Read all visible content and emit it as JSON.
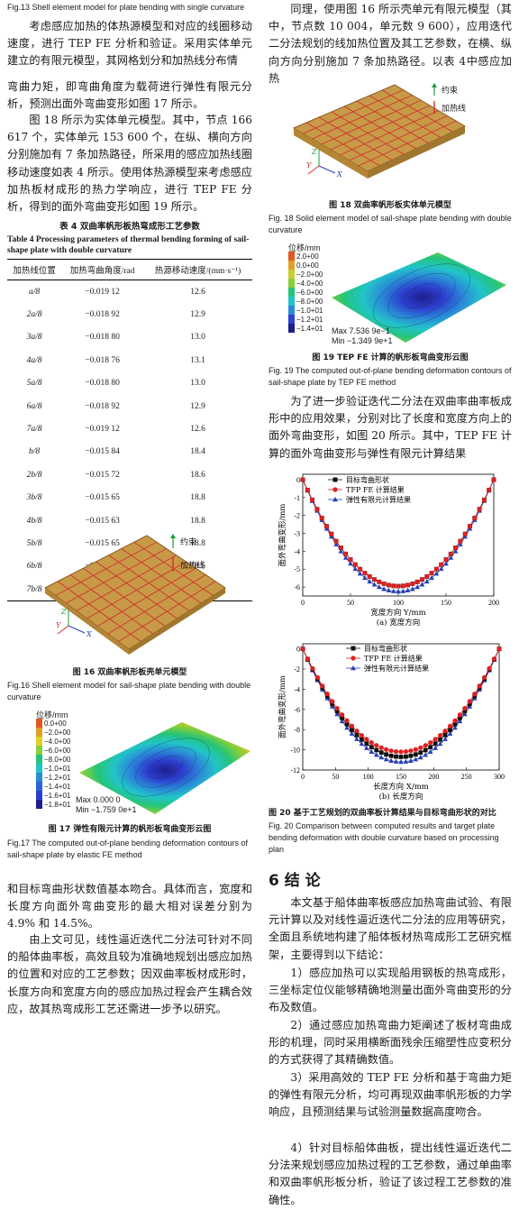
{
  "left": {
    "fig13_caption": "Fig.13    Shell element model for plate bending with single curvature",
    "para1": "考虑感应加热的体热源模型和对应的线圈移动速度，进行 TEP FE 分析和验证。采用实体单元建立的有限元模型，其网格划分和加热线分布情",
    "para2": "弯曲力矩，即弯曲角度为载荷进行弹性有限元分析，预测出面外弯曲变形如图 17 所示。",
    "para3": "图 18 所示为实体单元模型。其中，节点 166 617 个，实体单元 153 600 个，在纵、横向方向分别施加有 7 条加热路径，所采用的感应加热线圈移动速度如表 4 所示。使用体热源模型来考虑感应加热板材成形的热力学响应，进行 TEP FE 分析，得到的面外弯曲变形如图 19 所示。",
    "table4_title_cn": "表 4    双曲率帆形板热弯成形工艺参数",
    "table4_title_en": "Table 4    Processing parameters of thermal bending forming of sail-shape plate with double curvature",
    "table4_headers": [
      "加热线位置",
      "加热弯曲角度/rad",
      "热源移动速度/(mm·s⁻¹)"
    ],
    "table4_rows": [
      [
        "a/8",
        "−0.019 12",
        "12.6"
      ],
      [
        "2a/8",
        "−0.018 92",
        "12.9"
      ],
      [
        "3a/8",
        "−0.018 80",
        "13.0"
      ],
      [
        "4a/8",
        "−0.018 76",
        "13.1"
      ],
      [
        "5a/8",
        "−0.018 80",
        "13.0"
      ],
      [
        "6a/8",
        "−0.018 92",
        "12.9"
      ],
      [
        "7a/8",
        "−0.019 12",
        "12.6"
      ],
      [
        "b/8",
        "−0.015 84",
        "18.4"
      ],
      [
        "2b/8",
        "−0.015 72",
        "18.6"
      ],
      [
        "3b/8",
        "−0.015 65",
        "18.8"
      ],
      [
        "4b/8",
        "−0.015 63",
        "18.8"
      ],
      [
        "5b/8",
        "−0.015 65",
        "18.8"
      ],
      [
        "6b/8",
        "−0.015 72",
        "18.6"
      ],
      [
        "7b/8",
        "−0.015 84",
        "18.4"
      ]
    ],
    "fig16_legend": [
      "约束",
      "加热线"
    ],
    "fig16_caption_cn": "图 16    双曲率帆形板壳单元模型",
    "fig16_caption_en": "Fig.16    Shell element model for sail-shape plate bending with double curvature",
    "fig17_unit": "位移/mm",
    "fig17_scale": [
      "0.0+00",
      "−2.0+00",
      "−4.0+00",
      "−6.0+00",
      "−8.0+00",
      "−1.0+01",
      "−1.2+01",
      "−1.4+01",
      "−1.6+01",
      "−1.8+01"
    ],
    "fig17_max": "Max 0.000 0",
    "fig17_min": "Min −1.759 0e+1",
    "fig17_caption_cn": "图 17    弹性有限元计算的帆形板弯曲变形云图",
    "fig17_caption_en": "Fig.17    The computed out-of-plane bending deformation contours of sail-shape plate by elastic FE method",
    "para4": "和目标弯曲形状数值基本吻合。具体而言，宽度和长度方向面外弯曲变形的最大相对误差分别为 4.9% 和 14.5%。",
    "para5": "由上文可见，线性逼近迭代二分法可针对不同的船体曲率板，高效且较为准确地规划出感应加热的位置和对应的工艺参数；因双曲率板材成形时，长度方向和宽度方向的感应加热过程会产生耦合效应，故其热弯成形工艺还需进一步予以研究。"
  },
  "right": {
    "para1": "同理，使用图 16 所示壳单元有限元模型（其中，节点数 10 004，单元数 9 600），应用迭代二分法规划的线加热位置及其工艺参数，在横、纵向方向分别施加 7 条加热路径。以表 4中感应加热",
    "fig18_legend": [
      "约束",
      "加热线"
    ],
    "fig18_caption_cn": "图 18    双曲率帆形板实体单元模型",
    "fig18_caption_en": "Fig. 18    Solid element model of sail-shape plate bending with double curvature",
    "fig19_unit": "位移/mm",
    "fig19_scale": [
      "2.0+00",
      "0.0+00",
      "−2.0+00",
      "−4.0+00",
      "−6.0+00",
      "−8.0+00",
      "−1.0+01",
      "−1.2+01",
      "−1.4+01"
    ],
    "fig19_max": "Max 7.536 9e−1",
    "fig19_min": "Min −1.349 9e+1",
    "fig19_caption_cn": "图 19    TEP FE 计算的帆形板弯曲变形云图",
    "fig19_caption_en": "Fig. 19    The computed out-of-plane bending deformation contours of sail-shape plate by TEP FE method",
    "para2": "为了进一步验证迭代二分法在双曲率曲率板成形中的应用效果，分别对比了长度和宽度方向上的面外弯曲变形，如图 20 所示。其中，TEP FE 计算的面外弯曲变形与弹性有限元计算结果",
    "fig20_caption_cn": "图 20    基于工艺规划的双曲率板计算结果与目标弯曲形状的对比",
    "fig20_caption_en": "Fig. 20    Comparison between computed results and target plate bending deformation with double curvature based on processing plan",
    "section_title": "6    结    论",
    "concl_intro": "本文基于船体曲率板感应加热弯曲试验、有限元计算以及对线性逼近迭代二分法的应用等研究，全面且系统地构建了船体板材热弯成形工艺研究框架，主要得到以下结论：",
    "concl_1": "1）感应加热可以实现船用钢板的热弯成形，三坐标定位仪能够精确地测量出面外弯曲变形的分布及数值。",
    "concl_2": "2）通过感应加热弯曲力矩阐述了板材弯曲成形的机理，同时采用横断面残余压缩塑性应变积分的方式获得了其精确数值。",
    "concl_3": "3）采用高效的 TEP FE 分析和基于弯曲力矩的弹性有限元分析，均可再现双曲率帆形板的力学响应，且预测结果与试验测量数据高度吻合。",
    "concl_4": "4）针对目标船体曲板，提出线性逼近迭代二分法来规划感应加热过程的工艺参数，通过单曲率和双曲率帆形板分析，验证了该过程工艺参数的准确性。"
  },
  "chart_data": [
    {
      "type": "line",
      "caption": "(a) 宽度方向",
      "xlabel": "宽度方向 Y/mm",
      "ylabel": "面外弯曲变形/mm",
      "xlim": [
        0,
        200
      ],
      "ylim": [
        -6.5,
        0.3
      ],
      "xticks": [
        0,
        50,
        100,
        150,
        200
      ],
      "yticks": [
        0,
        -1,
        -2,
        -3,
        -4,
        -5,
        -6
      ],
      "x": [
        0,
        5,
        10,
        15,
        20,
        25,
        30,
        35,
        40,
        45,
        50,
        55,
        60,
        65,
        70,
        75,
        80,
        85,
        90,
        95,
        100,
        105,
        110,
        115,
        120,
        125,
        130,
        135,
        140,
        145,
        150,
        155,
        160,
        165,
        170,
        175,
        180,
        185,
        190,
        195,
        200
      ],
      "series": [
        {
          "name": "目标弯曲形状",
          "color": "#111111",
          "marker": "square",
          "min_value": -5.95
        },
        {
          "name": "TFP FE 计算结果",
          "color": "#e02020",
          "marker": "circle",
          "min_value": -5.95
        },
        {
          "name": "弹性有限元计算结果",
          "color": "#2840b0",
          "marker": "triangle",
          "min_value": -6.25
        }
      ]
    },
    {
      "type": "line",
      "caption": "(b) 长度方向",
      "xlabel": "长度方向 X/mm",
      "ylabel": "面外弯曲变形/mm",
      "xlim": [
        0,
        300
      ],
      "ylim": [
        -12,
        0.5
      ],
      "xticks": [
        0,
        50,
        100,
        150,
        200,
        250,
        300
      ],
      "yticks": [
        0,
        -2,
        -4,
        -6,
        -8,
        -10,
        -12
      ],
      "x": [
        0,
        7.5,
        15,
        22.5,
        30,
        37.5,
        45,
        52.5,
        60,
        67.5,
        75,
        82.5,
        90,
        97.5,
        105,
        112.5,
        120,
        127.5,
        135,
        142.5,
        150,
        157.5,
        165,
        172.5,
        180,
        187.5,
        195,
        202.5,
        210,
        217.5,
        225,
        232.5,
        240,
        247.5,
        255,
        262.5,
        270,
        277.5,
        285,
        292.5,
        300
      ],
      "series": [
        {
          "name": "目标弯曲形状",
          "color": "#111111",
          "marker": "square",
          "min_value": -10.7
        },
        {
          "name": "TFP FE 计算结果",
          "color": "#e02020",
          "marker": "circle",
          "min_value": -10.2
        },
        {
          "name": "弹性有限元计算结果",
          "color": "#2840b0",
          "marker": "triangle",
          "min_value": -11.2
        }
      ]
    }
  ]
}
